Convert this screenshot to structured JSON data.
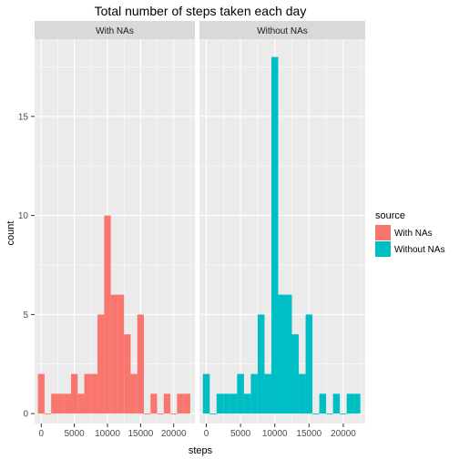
{
  "chart_data": {
    "type": "bar",
    "title": "Total number of steps taken each day",
    "xlabel": "steps",
    "ylabel": "count",
    "bin_width": 1000,
    "xlim": [
      -1000,
      23200
    ],
    "ylim": [
      -0.5,
      18.9
    ],
    "x_ticks": [
      0,
      5000,
      10000,
      15000,
      20000
    ],
    "x_tick_labels": [
      "0",
      "5000",
      "10000",
      "15000",
      "20000"
    ],
    "y_ticks": [
      0,
      5,
      10,
      15
    ],
    "y_tick_labels": [
      "0",
      "5",
      "10",
      "15"
    ],
    "grid": true,
    "legend": {
      "title": "source",
      "position": "right",
      "entries": [
        "With NAs",
        "Without NAs"
      ]
    },
    "colors": {
      "With NAs": "#F8766D",
      "Without NAs": "#00BFC4",
      "panel_bg": "#EBEBEB",
      "strip_bg": "#D9D9D9",
      "grid": "#FFFFFF"
    },
    "panels": [
      {
        "label": "With NAs",
        "series": "With NAs",
        "bins": [
          {
            "x": 0,
            "count": 2
          },
          {
            "x": 1000,
            "count": 0
          },
          {
            "x": 2000,
            "count": 1
          },
          {
            "x": 3000,
            "count": 1
          },
          {
            "x": 4000,
            "count": 1
          },
          {
            "x": 5000,
            "count": 2
          },
          {
            "x": 6000,
            "count": 1
          },
          {
            "x": 7000,
            "count": 2
          },
          {
            "x": 8000,
            "count": 2
          },
          {
            "x": 9000,
            "count": 5
          },
          {
            "x": 10000,
            "count": 10
          },
          {
            "x": 11000,
            "count": 6
          },
          {
            "x": 12000,
            "count": 6
          },
          {
            "x": 13000,
            "count": 4
          },
          {
            "x": 14000,
            "count": 2
          },
          {
            "x": 15000,
            "count": 5
          },
          {
            "x": 16000,
            "count": 0
          },
          {
            "x": 17000,
            "count": 1
          },
          {
            "x": 18000,
            "count": 0
          },
          {
            "x": 19000,
            "count": 1
          },
          {
            "x": 20000,
            "count": 0
          },
          {
            "x": 21000,
            "count": 1
          },
          {
            "x": 22000,
            "count": 1
          }
        ]
      },
      {
        "label": "Without NAs",
        "series": "Without NAs",
        "bins": [
          {
            "x": 0,
            "count": 2
          },
          {
            "x": 1000,
            "count": 0
          },
          {
            "x": 2000,
            "count": 1
          },
          {
            "x": 3000,
            "count": 1
          },
          {
            "x": 4000,
            "count": 1
          },
          {
            "x": 5000,
            "count": 2
          },
          {
            "x": 6000,
            "count": 1
          },
          {
            "x": 7000,
            "count": 2
          },
          {
            "x": 8000,
            "count": 5
          },
          {
            "x": 9000,
            "count": 2
          },
          {
            "x": 10000,
            "count": 18
          },
          {
            "x": 11000,
            "count": 6
          },
          {
            "x": 12000,
            "count": 6
          },
          {
            "x": 13000,
            "count": 4
          },
          {
            "x": 14000,
            "count": 2
          },
          {
            "x": 15000,
            "count": 5
          },
          {
            "x": 16000,
            "count": 0
          },
          {
            "x": 17000,
            "count": 1
          },
          {
            "x": 18000,
            "count": 0
          },
          {
            "x": 19000,
            "count": 1
          },
          {
            "x": 20000,
            "count": 0
          },
          {
            "x": 21000,
            "count": 1
          },
          {
            "x": 22000,
            "count": 1
          }
        ]
      }
    ]
  }
}
